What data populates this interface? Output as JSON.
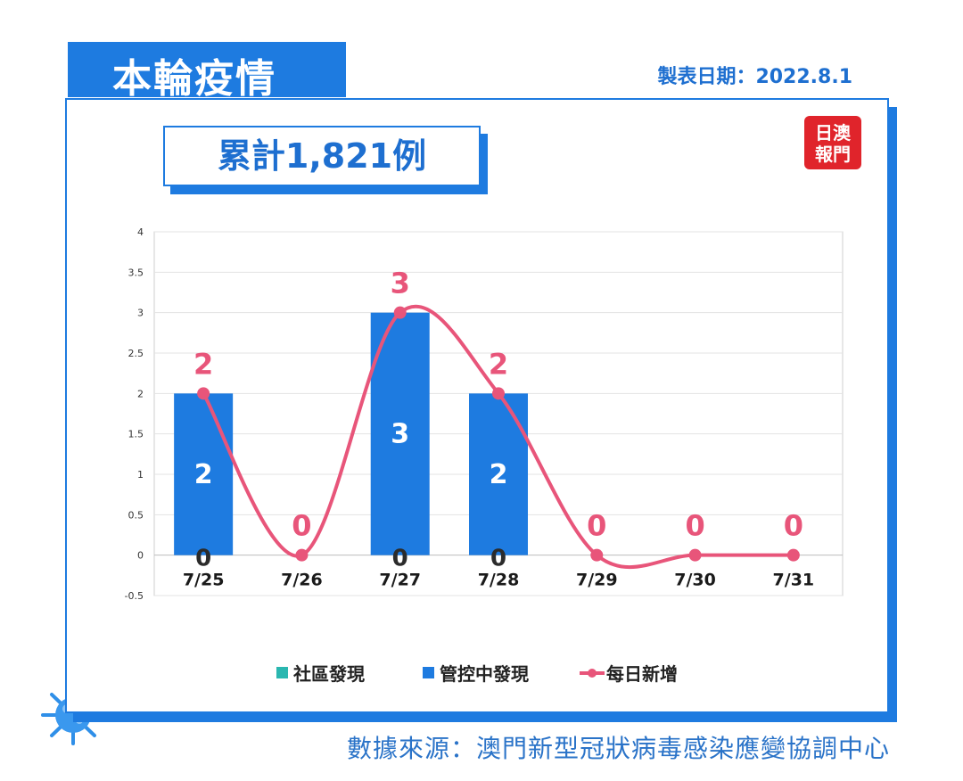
{
  "header": {
    "title": "本輪疫情",
    "date": "製表日期：2022.8.1",
    "total": "累計1,821例"
  },
  "logo": {
    "text_top": "日澳",
    "text_bottom": "報門",
    "color": "#e0242b"
  },
  "footer": {
    "source": "數據來源：澳門新型冠狀病毒感染應變協調中心"
  },
  "chart_data": {
    "type": "bar",
    "categories": [
      "7/25",
      "7/26",
      "7/27",
      "7/28",
      "7/29",
      "7/30",
      "7/31"
    ],
    "ylim": [
      -0.5,
      4
    ],
    "yticks": [
      "-0.5",
      "0",
      "0.5",
      "1",
      "1.5",
      "2",
      "2.5",
      "3",
      "3.5",
      "4"
    ],
    "grid": true,
    "legend_position": "bottom",
    "series": [
      {
        "name": "社區發現",
        "type": "bar",
        "color": "#2ab7b0",
        "values": [
          0,
          0,
          0,
          0,
          0,
          0,
          0
        ]
      },
      {
        "name": "管控中發現",
        "type": "bar",
        "color": "#1e7be0",
        "values": [
          2,
          0,
          3,
          2,
          0,
          0,
          0
        ]
      },
      {
        "name": "每日新增",
        "type": "line",
        "color": "#e8557a",
        "values": [
          2,
          0,
          3,
          2,
          0,
          0,
          0
        ]
      }
    ]
  },
  "colors": {
    "accent": "#1e7be0",
    "line": "#e8557a",
    "community": "#2ab7b0"
  }
}
